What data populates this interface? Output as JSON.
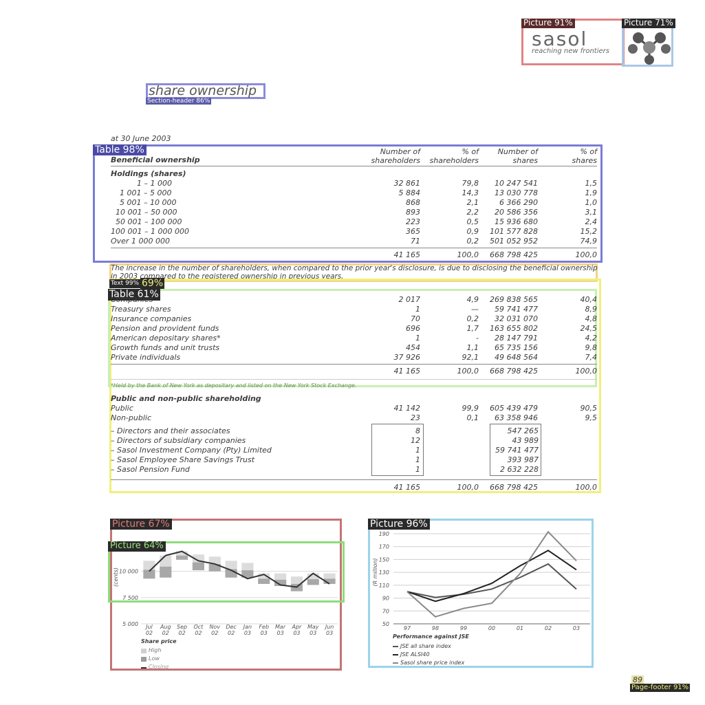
{
  "overlay": {
    "colors": {
      "purple": "#7b7bd6",
      "red": "#e07b7b",
      "blue": "#a9c8e8",
      "yellow": "#f2ef7a",
      "green": "#9de37f",
      "olive": "#c8c86c",
      "darkred": "#c47474",
      "lightblue": "#9bd3ea"
    },
    "labels": {
      "picture_logo": "Picture 91%",
      "picture_emblem": "Picture 71%",
      "section_header": "Section-header 86%",
      "table_main": "Table 98%",
      "text_69": "69%",
      "text_tag": "Text 99%",
      "table_61": "Table 61%",
      "picture_67": "Picture 67%",
      "picture_64": "Picture 64%",
      "picture_96": "Picture 96%",
      "page_footer": "Page-footer 91%"
    }
  },
  "logo": {
    "name": "sasol",
    "tagline": "reaching new frontiers"
  },
  "section_title": "share ownership",
  "date_line": "at 30 June 2003",
  "table": {
    "headers": {
      "col_label": "Beneficial ownership",
      "c1_a": "Number of",
      "c1_b": "shareholders",
      "c2_a": "% of",
      "c2_b": "shareholders",
      "c3_a": "Number of",
      "c3_b": "shares",
      "c4_a": "% of",
      "c4_b": "shares"
    },
    "holdings_title": "Holdings (shares)",
    "holdings": [
      {
        "label": "1 –         1 000",
        "c1": "32 861",
        "c2": "79,8",
        "c3": "10 247 541",
        "c4": "1,5"
      },
      {
        "label": "1 001 –       5 000",
        "c1": "5 884",
        "c2": "14,3",
        "c3": "13 030 778",
        "c4": "1,9"
      },
      {
        "label": "5 001 –     10 000",
        "c1": "868",
        "c2": "2,1",
        "c3": "6 366 290",
        "c4": "1,0"
      },
      {
        "label": "10 001 –     50 000",
        "c1": "893",
        "c2": "2,2",
        "c3": "20 586 356",
        "c4": "3,1"
      },
      {
        "label": "50 001 –   100 000",
        "c1": "223",
        "c2": "0,5",
        "c3": "15 936 680",
        "c4": "2,4"
      },
      {
        "label": "100 001 – 1 000 000",
        "c1": "365",
        "c2": "0,9",
        "c3": "101 577 828",
        "c4": "15,2"
      },
      {
        "label": "Over 1 000 000",
        "c1": "71",
        "c2": "0,2",
        "c3": "501 052 952",
        "c4": "74,9"
      }
    ],
    "holdings_total": {
      "c1": "41 165",
      "c2": "100,0",
      "c3": "668 798 425",
      "c4": "100,0"
    },
    "disclosure_text": "The increase in the number of shareholders, when compared to the prior year's disclosure, is due to disclosing the beneficial ownership",
    "disclosure_text_2": "in 2003 compared to the registered ownership in previous years.",
    "categories_title": "Companies",
    "categories": [
      {
        "label": "Companies",
        "c1": "2 017",
        "c2": "4,9",
        "c3": "269 838 565",
        "c4": "40,4"
      },
      {
        "label": "Treasury shares",
        "c1": "1",
        "c2": "—",
        "c3": "59 741 477",
        "c4": "8,9"
      },
      {
        "label": "Insurance companies",
        "c1": "70",
        "c2": "0,2",
        "c3": "32 031 070",
        "c4": "4,8"
      },
      {
        "label": "Pension and provident funds",
        "c1": "696",
        "c2": "1,7",
        "c3": "163 655 802",
        "c4": "24,5"
      },
      {
        "label": "American depositary shares*",
        "c1": "1",
        "c2": "-",
        "c3": "28 147 791",
        "c4": "4,2"
      },
      {
        "label": "Growth funds and unit trusts",
        "c1": "454",
        "c2": "1,1",
        "c3": "65 735 156",
        "c4": "9,8"
      },
      {
        "label": "Private individuals",
        "c1": "37 926",
        "c2": "92,1",
        "c3": "49 648 564",
        "c4": "7,4"
      }
    ],
    "categories_total": {
      "c1": "41 165",
      "c2": "100,0",
      "c3": "668 798 425",
      "c4": "100,0"
    },
    "footnote": "*Held by the Bank of New York as depositary and listed on the New York Stock Exchange.",
    "public_title": "Public and non-public shareholding",
    "public_rows": [
      {
        "label": "Public",
        "c1": "41 142",
        "c2": "99,9",
        "c3": "605 439 479",
        "c4": "90,5"
      },
      {
        "label": "Non-public",
        "c1": "23",
        "c2": "0,1",
        "c3": "63 358 946",
        "c4": "9,5"
      }
    ],
    "nonpublic_rows": [
      {
        "label": "– Directors and their associates",
        "c1": "8",
        "c3": "547 265"
      },
      {
        "label": "– Directors of subsidiary companies",
        "c1": "12",
        "c3": "43 989"
      },
      {
        "label": "– Sasol Investment Company (Pty) Limited",
        "c1": "1",
        "c3": "59 741 477"
      },
      {
        "label": "– Sasol Employee Share Savings Trust",
        "c1": "1",
        "c3": "393 987"
      },
      {
        "label": "– Sasol Pension Fund",
        "c1": "1",
        "c3": "2 632 228"
      }
    ],
    "public_total": {
      "c1": "41 165",
      "c2": "100,0",
      "c3": "668 798 425",
      "c4": "100,0"
    }
  },
  "chart_data": [
    {
      "type": "bar",
      "title": "Share price",
      "ylabel": "(cents)",
      "ylim": [
        5000,
        12200
      ],
      "yticks": [
        "10 000",
        "7 500",
        "5 000"
      ],
      "categories": [
        "Jul 02",
        "Aug 02",
        "Sep 02",
        "Oct 02",
        "Nov 02",
        "Dec 02",
        "Jan 03",
        "Feb 03",
        "Mar 03",
        "Apr 03",
        "May 03",
        "Jun 03"
      ],
      "cat_top": [
        "Jul",
        "Aug",
        "Sep",
        "Oct",
        "Nov",
        "Dec",
        "Jan",
        "Feb",
        "Mar",
        "Apr",
        "May",
        "Jun"
      ],
      "cat_bottom": [
        "02",
        "02",
        "02",
        "02",
        "02",
        "02",
        "03",
        "03",
        "03",
        "03",
        "03",
        "03"
      ],
      "series": [
        {
          "name": "High",
          "values": [
            11000,
            11500,
            11900,
            11600,
            11400,
            11000,
            10800,
            9800,
            9800,
            9500,
            9800,
            9800
          ]
        },
        {
          "name": "Low",
          "values": [
            9300,
            9400,
            11100,
            10100,
            10000,
            9400,
            9400,
            8800,
            8600,
            8100,
            8700,
            8800
          ]
        },
        {
          "name": "Closing",
          "values": [
            10000,
            11500,
            11900,
            11000,
            10700,
            10100,
            9300,
            9700,
            8700,
            8500,
            9800,
            8800
          ]
        }
      ],
      "legend_title": "Share price",
      "colors": {
        "bar": "#b8b8b8",
        "line": "#333333"
      }
    },
    {
      "type": "line",
      "title": "Performance against JSE",
      "ylabel": "(R million)",
      "ylim": [
        50,
        190
      ],
      "yticks": [
        190,
        170,
        150,
        130,
        110,
        90,
        70,
        50
      ],
      "categories": [
        "97",
        "98",
        "99",
        "00",
        "01",
        "02",
        "03"
      ],
      "series": [
        {
          "name": "JSE all share index",
          "values": [
            100,
            91,
            96,
            104,
            122,
            143,
            104
          ],
          "color": "#555555"
        },
        {
          "name": "JSE ALSI40",
          "values": [
            100,
            85,
            97,
            113,
            140,
            164,
            134
          ],
          "color": "#222222"
        },
        {
          "name": "Sasol share price index",
          "values": [
            100,
            61,
            74,
            82,
            128,
            193,
            148
          ],
          "color": "#888888"
        }
      ]
    }
  ],
  "page_number": "89"
}
